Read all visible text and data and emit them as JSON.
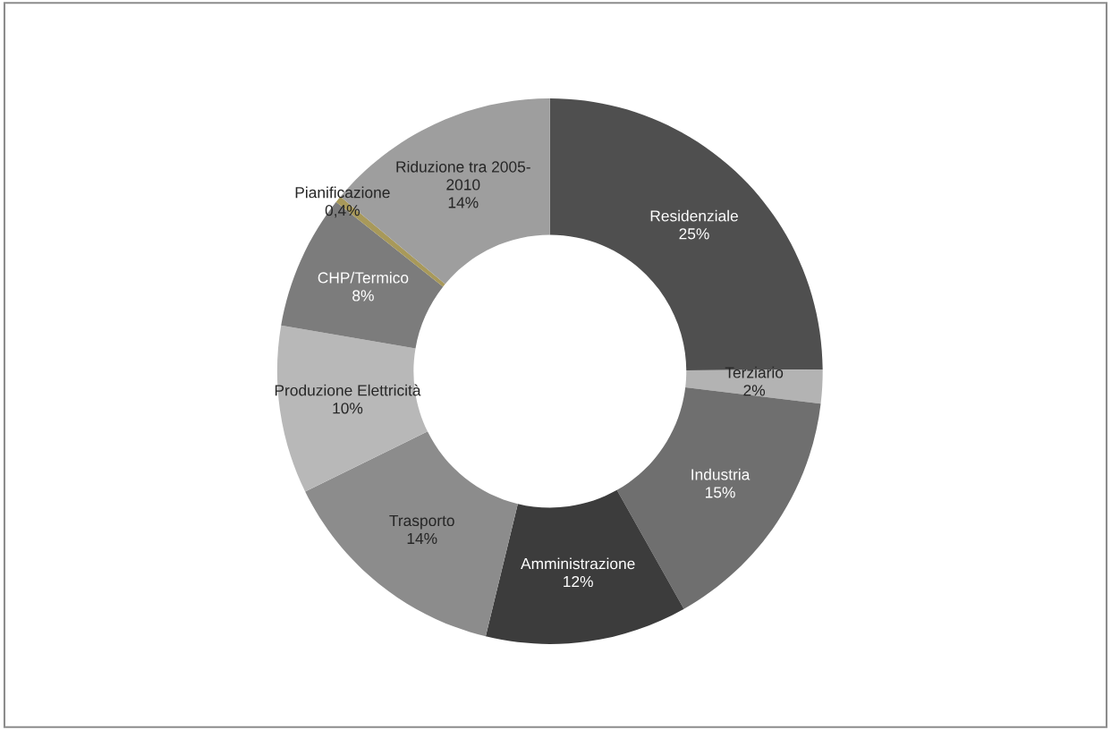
{
  "chart_data": {
    "type": "donut",
    "categories": [
      "Residenziale",
      "Terziario",
      "Industria",
      "Amministrazione",
      "Trasporto",
      "Produzione Elettricità",
      "CHP/Termico",
      "Pianificazione",
      "Riduzione tra 2005-\n2010"
    ],
    "values": [
      25,
      2,
      15,
      12,
      14,
      10,
      8,
      0.4,
      14
    ],
    "value_labels": [
      "25%",
      "2%",
      "15%",
      "12%",
      "14%",
      "10%",
      "8%",
      "0,4%",
      "14%"
    ],
    "colors": [
      "#4f4f4f",
      "#b3b3b3",
      "#6f6f6f",
      "#3c3c3c",
      "#8c8c8c",
      "#b8b8b8",
      "#7c7c7c",
      "#a8995a",
      "#9e9e9e"
    ],
    "legend": false
  }
}
